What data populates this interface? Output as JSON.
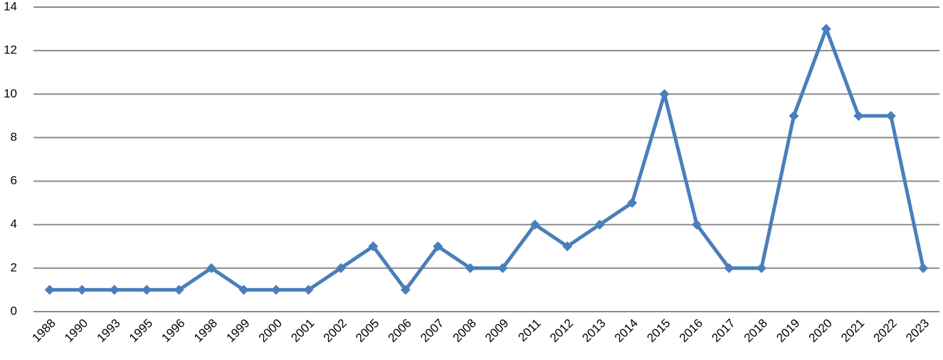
{
  "chart_data": {
    "type": "line",
    "categories": [
      "1988",
      "1990",
      "1993",
      "1995",
      "1996",
      "1998",
      "1999",
      "2000",
      "2001",
      "2002",
      "2005",
      "2006",
      "2007",
      "2008",
      "2009",
      "2011",
      "2012",
      "2013",
      "2014",
      "2015",
      "2016",
      "2017",
      "2018",
      "2019",
      "2020",
      "2021",
      "2022",
      "2023"
    ],
    "values": [
      1,
      1,
      1,
      1,
      1,
      2,
      1,
      1,
      1,
      2,
      3,
      1,
      3,
      2,
      2,
      4,
      3,
      4,
      5,
      10,
      4,
      2,
      2,
      9,
      13,
      9,
      9,
      2
    ],
    "color": "#4a7ebb",
    "ylim": [
      0,
      14
    ],
    "yticks": [
      0,
      2,
      4,
      6,
      8,
      10,
      12,
      14
    ],
    "grid": true
  }
}
